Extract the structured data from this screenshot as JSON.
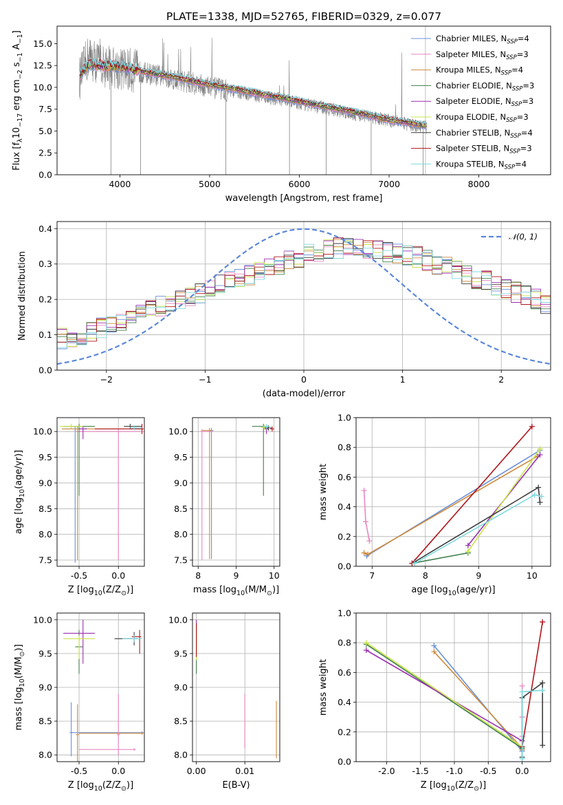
{
  "figure_title": "PLATE=1338, MJD=52765, FIBERID=0329, z=0.077",
  "models": [
    {
      "name": "Chabrier MILES, N",
      "sub": "SSP",
      "suffix": "=4",
      "color": "#6a8fd8"
    },
    {
      "name": "Salpeter MILES, N",
      "sub": "SSP",
      "suffix": "=3",
      "color": "#e887c2"
    },
    {
      "name": "Kroupa MILES, N",
      "sub": "SSP",
      "suffix": "=4",
      "color": "#cf8a3c"
    },
    {
      "name": "Chabrier ELODIE, N",
      "sub": "SSP",
      "suffix": "=3",
      "color": "#3f7f4a"
    },
    {
      "name": "Salpeter ELODIE, N",
      "sub": "SSP",
      "suffix": "=3",
      "color": "#9b2fb0"
    },
    {
      "name": "Kroupa ELODIE, N",
      "sub": "SSP",
      "suffix": "=3",
      "color": "#c9e44a"
    },
    {
      "name": "Chabrier STELIB, N",
      "sub": "SSP",
      "suffix": "=4",
      "color": "#3c3c3c"
    },
    {
      "name": "Salpeter STELIB, N",
      "sub": "SSP",
      "suffix": "=3",
      "color": "#b0141a"
    },
    {
      "name": "Kroupa STELIB, N",
      "sub": "SSP",
      "suffix": "=4",
      "color": "#7fd9df"
    }
  ],
  "chart_data": [
    {
      "id": "spectrum",
      "type": "line",
      "xlabel": "wavelength [Angstrom, rest frame]",
      "ylabel_parts": [
        "Flux [f",
        "λ",
        "10",
        "−17",
        " erg cm",
        "−2",
        " s",
        "−1",
        " A",
        "−1",
        "]"
      ],
      "xlim": [
        3300,
        8800
      ],
      "ylim": [
        0,
        17
      ],
      "xticks": [
        4000,
        5000,
        6000,
        7000,
        8000
      ],
      "yticks": [
        0.0,
        2.5,
        5.0,
        7.5,
        10.0,
        12.5,
        15.0
      ],
      "data_color": "#808080",
      "data_continuum": [
        [
          3550,
          11.0
        ],
        [
          3650,
          13.5
        ],
        [
          3800,
          12.5
        ],
        [
          3950,
          12.2
        ],
        [
          4100,
          12.0
        ],
        [
          4300,
          11.6
        ],
        [
          4600,
          11.0
        ],
        [
          5000,
          10.0
        ],
        [
          5400,
          9.3
        ],
        [
          5800,
          8.6
        ],
        [
          6200,
          7.8
        ],
        [
          6600,
          7.0
        ],
        [
          7000,
          6.2
        ],
        [
          7300,
          5.6
        ],
        [
          7420,
          5.4
        ]
      ],
      "model_curve": [
        [
          3550,
          11.3
        ],
        [
          3650,
          12.6
        ],
        [
          3800,
          12.5
        ],
        [
          4000,
          12.4
        ],
        [
          4300,
          11.7
        ],
        [
          4600,
          11.2
        ],
        [
          5000,
          10.3
        ],
        [
          5400,
          9.6
        ],
        [
          5800,
          8.8
        ],
        [
          6200,
          8.0
        ],
        [
          6600,
          7.2
        ],
        [
          7000,
          6.3
        ],
        [
          7300,
          5.8
        ],
        [
          7420,
          5.6
        ]
      ]
    },
    {
      "id": "residuals",
      "type": "step-histogram",
      "xlabel": "(data-model)/error",
      "ylabel": "Normed distribution",
      "xlim": [
        -2.5,
        2.5
      ],
      "ylim": [
        0,
        0.42
      ],
      "xticks": [
        -2,
        -1,
        0,
        1,
        2
      ],
      "yticks": [
        0.0,
        0.1,
        0.2,
        0.3,
        0.4
      ],
      "gaussian_label": "𝒩(0, 1)",
      "gaussian_color": "#5b87d8",
      "bin_width": 0.1,
      "bin_start": -2.5,
      "base_shape": [
        0.09,
        0.095,
        0.1,
        0.11,
        0.12,
        0.13,
        0.14,
        0.15,
        0.16,
        0.17,
        0.18,
        0.19,
        0.2,
        0.21,
        0.22,
        0.23,
        0.24,
        0.25,
        0.26,
        0.27,
        0.28,
        0.29,
        0.3,
        0.31,
        0.32,
        0.33,
        0.335,
        0.34,
        0.345,
        0.35,
        0.35,
        0.345,
        0.34,
        0.335,
        0.33,
        0.325,
        0.32,
        0.31,
        0.3,
        0.29,
        0.28,
        0.27,
        0.26,
        0.25,
        0.24,
        0.23,
        0.22,
        0.21,
        0.2,
        0.19,
        0.18,
        0.17,
        0.16,
        0.15,
        0.14,
        0.13,
        0.12,
        0.11,
        0.1,
        0.09
      ]
    },
    {
      "id": "age-vs-Z",
      "type": "errorbar",
      "xlabel_parts": [
        "Z [log",
        "10",
        "(Z/Z",
        "⊙",
        ")]"
      ],
      "ylabel_parts": [
        "age  [log",
        "10",
        "(age/yr)]"
      ],
      "xlim": [
        -0.78,
        0.33
      ],
      "ylim": [
        7.38,
        10.27
      ],
      "xticks": [
        -0.5,
        0.0
      ],
      "yticks": [
        7.5,
        8.0,
        8.5,
        9.0,
        9.5,
        10.0
      ],
      "points": [
        {
          "m": 0,
          "x": -0.55,
          "y": 10.05,
          "xe": [
            0.15,
            0.15
          ],
          "ye": [
            2.6,
            0.05
          ]
        },
        {
          "m": 1,
          "x": 0.0,
          "y": 10.0,
          "xe": [
            0.55,
            0.28
          ],
          "ye": [
            2.5,
            0.05
          ]
        },
        {
          "m": 2,
          "x": -0.52,
          "y": 10.05,
          "xe": [
            0.2,
            0.6
          ],
          "ye": [
            2.55,
            0.05
          ]
        },
        {
          "m": 3,
          "x": -0.5,
          "y": 10.1,
          "xe": [
            0.2,
            0.2
          ],
          "ye": [
            1.35,
            0.05
          ]
        },
        {
          "m": 4,
          "x": -0.45,
          "y": 10.05,
          "xe": [
            0.05,
            0.05
          ],
          "ye": [
            0.2,
            0.05
          ]
        },
        {
          "m": 5,
          "x": -0.6,
          "y": 10.1,
          "xe": [
            0.15,
            0.15
          ],
          "ye": [
            0.05,
            0.05
          ]
        },
        {
          "m": 6,
          "x": 0.15,
          "y": 10.1,
          "xe": [
            0.08,
            0.15
          ],
          "ye": [
            0.05,
            0.05
          ]
        },
        {
          "m": 7,
          "x": 0.3,
          "y": 10.05,
          "xe": [
            0.6,
            0.02
          ],
          "ye": [
            0.1,
            0.1
          ]
        },
        {
          "m": 8,
          "x": 0.2,
          "y": 10.07,
          "xe": [
            0.05,
            0.1
          ],
          "ye": [
            0.05,
            0.05
          ]
        }
      ]
    },
    {
      "id": "age-vs-mass",
      "type": "errorbar",
      "xlabel_parts": [
        "mass [log",
        "10",
        "(M/M",
        "⊙",
        ")]"
      ],
      "ylabel_parts": [],
      "xlim": [
        7.85,
        10.15
      ],
      "ylim": [
        7.38,
        10.27
      ],
      "xticks": [
        8,
        9,
        10
      ],
      "yticks": [
        7.5,
        8.0,
        8.5,
        9.0,
        9.5,
        10.0
      ],
      "points": [
        {
          "m": 0,
          "x": 8.35,
          "y": 10.02,
          "xe": [
            0.05,
            0.05
          ],
          "ye": [
            2.5,
            0.05
          ]
        },
        {
          "m": 1,
          "x": 8.1,
          "y": 10.0,
          "xe": [
            0.05,
            0.3
          ],
          "ye": [
            2.5,
            0.05
          ]
        },
        {
          "m": 2,
          "x": 8.3,
          "y": 10.02,
          "xe": [
            0.2,
            0.05
          ],
          "ye": [
            2.5,
            0.05
          ]
        },
        {
          "m": 3,
          "x": 9.72,
          "y": 10.1,
          "xe": [
            0.3,
            0.1
          ],
          "ye": [
            1.35,
            0.05
          ]
        },
        {
          "m": 4,
          "x": 9.8,
          "y": 10.05,
          "xe": [
            0.05,
            0.05
          ],
          "ye": [
            0.1,
            0.05
          ]
        },
        {
          "m": 5,
          "x": 9.75,
          "y": 10.08,
          "xe": [
            0.1,
            0.1
          ],
          "ye": [
            0.05,
            0.05
          ]
        },
        {
          "m": 6,
          "x": 9.85,
          "y": 10.07,
          "xe": [
            0.1,
            0.1
          ],
          "ye": [
            0.05,
            0.05
          ]
        },
        {
          "m": 7,
          "x": 9.95,
          "y": 10.05,
          "xe": [
            0.05,
            0.05
          ],
          "ye": [
            0.05,
            0.05
          ]
        },
        {
          "m": 8,
          "x": 9.8,
          "y": 10.1,
          "xe": [
            0.1,
            0.1
          ],
          "ye": [
            0.05,
            0.05
          ]
        }
      ]
    },
    {
      "id": "weight-vs-age",
      "type": "line",
      "xlabel_parts": [
        "age  [log",
        "10",
        "(age/yr)]"
      ],
      "ylabel": "mass weight",
      "xlim": [
        6.7,
        10.35
      ],
      "ylim": [
        0,
        1.0
      ],
      "xticks": [
        7,
        8,
        9,
        10
      ],
      "yticks": [
        0.0,
        0.2,
        0.4,
        0.6,
        0.8,
        1.0
      ],
      "series": [
        {
          "m": 0,
          "points": [
            [
              6.9,
              0.07
            ],
            [
              10.15,
              0.78
            ]
          ]
        },
        {
          "m": 1,
          "points": [
            [
              6.85,
              0.51
            ],
            [
              6.88,
              0.3
            ],
            [
              6.95,
              0.17
            ]
          ]
        },
        {
          "m": 2,
          "points": [
            [
              6.85,
              0.09
            ],
            [
              6.92,
              0.08
            ],
            [
              10.1,
              0.74
            ]
          ]
        },
        {
          "m": 3,
          "points": [
            [
              7.75,
              0.02
            ],
            [
              8.8,
              0.09
            ]
          ]
        },
        {
          "m": 4,
          "points": [
            [
              8.8,
              0.14
            ],
            [
              10.15,
              0.75
            ]
          ]
        },
        {
          "m": 5,
          "points": [
            [
              8.8,
              0.1
            ],
            [
              10.15,
              0.79
            ]
          ]
        },
        {
          "m": 6,
          "points": [
            [
              7.8,
              0.03
            ],
            [
              10.12,
              0.53
            ],
            [
              10.15,
              0.43
            ]
          ]
        },
        {
          "m": 7,
          "points": [
            [
              7.75,
              0.02
            ],
            [
              10.0,
              0.94
            ]
          ]
        },
        {
          "m": 8,
          "points": [
            [
              7.8,
              0.02
            ],
            [
              10.05,
              0.48
            ],
            [
              10.18,
              0.47
            ]
          ]
        }
      ]
    },
    {
      "id": "mass-vs-Z",
      "type": "errorbar",
      "xlabel_parts": [
        "Z [log",
        "10",
        "(Z/Z",
        "⊙",
        ")]"
      ],
      "ylabel_parts": [
        "mass [log",
        "10",
        "(M/M",
        "⊙",
        ")]"
      ],
      "xlim": [
        -0.78,
        0.33
      ],
      "ylim": [
        7.9,
        10.1
      ],
      "xticks": [
        -0.5,
        0.0
      ],
      "yticks": [
        8.0,
        8.5,
        9.0,
        9.5,
        10.0
      ],
      "points": [
        {
          "m": 0,
          "x": 0.3,
          "y": 8.33,
          "xe": [
            0.9,
            0.02
          ],
          "ye": [
            0.02,
            0.02
          ]
        },
        {
          "m": 0,
          "x": -0.6,
          "y": 8.33,
          "xe": [
            0.02,
            0.02
          ],
          "ye": [
            0.35,
            0.45
          ]
        },
        {
          "m": 1,
          "x": 0.2,
          "y": 8.08,
          "xe": [
            0.7,
            0.02
          ],
          "ye": [
            0.02,
            0.02
          ]
        },
        {
          "m": 1,
          "x": 0.0,
          "y": 8.3,
          "xe": [
            0.02,
            0.02
          ],
          "ye": [
            0.3,
            0.6
          ]
        },
        {
          "m": 2,
          "x": 0.3,
          "y": 8.32,
          "xe": [
            0.8,
            0.02
          ],
          "ye": [
            0.02,
            0.02
          ]
        },
        {
          "m": 2,
          "x": -0.52,
          "y": 8.3,
          "xe": [
            0.02,
            0.02
          ],
          "ye": [
            0.4,
            0.45
          ]
        },
        {
          "m": 3,
          "x": -0.5,
          "y": 9.6,
          "xe": [
            0.05,
            0.05
          ],
          "ye": [
            0.4,
            0.25
          ]
        },
        {
          "m": 4,
          "x": -0.45,
          "y": 9.8,
          "xe": [
            0.25,
            0.15
          ],
          "ye": [
            0.45,
            0.2
          ]
        },
        {
          "m": 5,
          "x": -0.5,
          "y": 9.72,
          "xe": [
            0.2,
            0.2
          ],
          "ye": [
            0.3,
            0.05
          ]
        },
        {
          "m": 6,
          "x": 0.2,
          "y": 9.72,
          "xe": [
            0.25,
            0.05
          ],
          "ye": [
            0.1,
            0.1
          ]
        },
        {
          "m": 7,
          "x": 0.27,
          "y": 9.75,
          "xe": [
            0.1,
            0.02
          ],
          "ye": [
            0.25,
            0.1
          ]
        },
        {
          "m": 8,
          "x": 0.2,
          "y": 9.72,
          "xe": [
            0.15,
            0.1
          ],
          "ye": [
            0.05,
            0.05
          ]
        }
      ]
    },
    {
      "id": "mass-vs-EBV",
      "type": "errorbar",
      "xlabel": "E(B-V)",
      "ylabel_parts": [],
      "xlim": [
        -0.0008,
        0.0172
      ],
      "ylim": [
        7.9,
        10.1
      ],
      "xticks": [
        0.0,
        0.01
      ],
      "yticks": [
        8.0,
        8.5,
        9.0,
        9.5,
        10.0
      ],
      "points": [
        {
          "m": 1,
          "x": 0.01,
          "y": 8.3,
          "xe": [
            0,
            0
          ],
          "ye": [
            0.2,
            0.6
          ]
        },
        {
          "m": 2,
          "x": 0.0165,
          "y": 8.3,
          "xe": [
            0,
            0
          ],
          "ye": [
            0.35,
            0.5
          ]
        },
        {
          "m": 3,
          "x": 0.0,
          "y": 9.6,
          "xe": [
            0,
            0
          ],
          "ye": [
            0.4,
            0.3
          ]
        },
        {
          "m": 4,
          "x": 0.0,
          "y": 9.8,
          "xe": [
            0,
            0
          ],
          "ye": [
            0.3,
            0.2
          ]
        },
        {
          "m": 5,
          "x": 0.0,
          "y": 9.7,
          "xe": [
            0,
            0
          ],
          "ye": [
            0.3,
            0.2
          ]
        },
        {
          "m": 7,
          "x": 0.0,
          "y": 9.75,
          "xe": [
            0,
            0
          ],
          "ye": [
            0.3,
            0.2
          ]
        }
      ]
    },
    {
      "id": "weight-vs-Z",
      "type": "line",
      "xlabel_parts": [
        "Z [log",
        "10",
        "(Z/Z",
        "⊙",
        ")]"
      ],
      "ylabel": "mass weight",
      "xlim": [
        -2.45,
        0.42
      ],
      "ylim": [
        0,
        1.0
      ],
      "xticks": [
        -2.0,
        -1.5,
        -1.0,
        -0.5,
        0.0
      ],
      "yticks": [
        0.0,
        0.2,
        0.4,
        0.6,
        0.8,
        1.0
      ],
      "series": [
        {
          "m": 0,
          "points": [
            [
              -1.3,
              0.78
            ],
            [
              0.0,
              0.07
            ]
          ]
        },
        {
          "m": 1,
          "points": [
            [
              0.0,
              0.51
            ],
            [
              0.0,
              0.3
            ],
            [
              0.0,
              0.17
            ]
          ]
        },
        {
          "m": 2,
          "points": [
            [
              -1.3,
              0.74
            ],
            [
              0.0,
              0.09
            ],
            [
              0.0,
              0.08
            ]
          ]
        },
        {
          "m": 3,
          "points": [
            [
              -2.3,
              0.79
            ],
            [
              0.0,
              0.09
            ]
          ]
        },
        {
          "m": 4,
          "points": [
            [
              -2.3,
              0.75
            ],
            [
              0.0,
              0.14
            ]
          ]
        },
        {
          "m": 5,
          "points": [
            [
              -2.3,
              0.8
            ],
            [
              0.0,
              0.1
            ]
          ]
        },
        {
          "m": 6,
          "points": [
            [
              0.0,
              0.03
            ],
            [
              0.0,
              0.43
            ],
            [
              0.3,
              0.53
            ],
            [
              0.3,
              0.11
            ]
          ]
        },
        {
          "m": 7,
          "points": [
            [
              0.0,
              0.1
            ],
            [
              0.3,
              0.94
            ]
          ]
        },
        {
          "m": 8,
          "points": [
            [
              0.0,
              0.02
            ],
            [
              0.0,
              0.47
            ],
            [
              0.3,
              0.48
            ]
          ]
        }
      ]
    }
  ]
}
